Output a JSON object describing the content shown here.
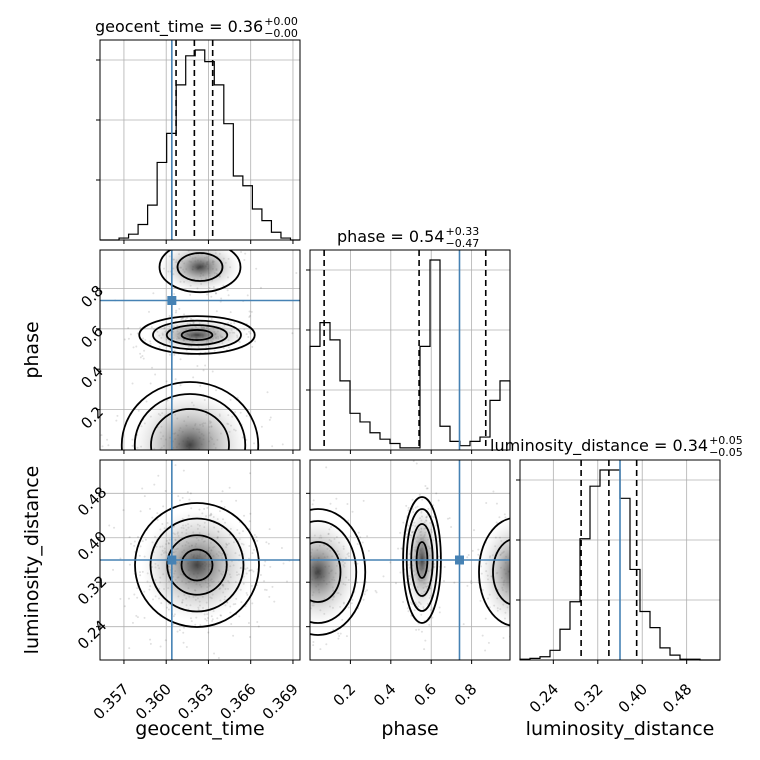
{
  "chart_data": {
    "type": "corner",
    "parameters": [
      "geocent_time",
      "phase",
      "luminosity_distance"
    ],
    "axis_labels": {
      "geocent_time": "geocent_time",
      "phase": "phase",
      "luminosity_distance": "luminosity_distance"
    },
    "ranges": {
      "geocent_time": [
        0.3553,
        0.3695
      ],
      "phase": [
        0.0,
        0.99
      ],
      "luminosity_distance": [
        0.18,
        0.54
      ]
    },
    "ticks": {
      "geocent_time": [
        "0.357",
        "0.360",
        "0.363",
        "0.366",
        "0.369"
      ],
      "phase": [
        "0.2",
        "0.4",
        "0.6",
        "0.8"
      ],
      "luminosity_distance": [
        "0.24",
        "0.32",
        "0.40",
        "0.48"
      ]
    },
    "truths": {
      "geocent_time": 0.3604,
      "phase": 0.74,
      "luminosity_distance": 0.36
    },
    "titles": [
      {
        "param": "geocent_time",
        "prefix": "geocent_time = 0.36",
        "plus": "+0.00",
        "minus": "−0.00"
      },
      {
        "param": "phase",
        "prefix": "phase = 0.54",
        "plus": "+0.33",
        "minus": "−0.47"
      },
      {
        "param": "luminosity_distance",
        "prefix": "luminosity_distance = 0.34",
        "plus": "+0.05",
        "minus": "−0.05"
      }
    ],
    "quantiles": {
      "geocent_time": [
        0.3607,
        0.362,
        0.3633
      ],
      "phase": [
        0.07,
        0.54,
        0.87
      ],
      "luminosity_distance": [
        0.29,
        0.34,
        0.39
      ]
    },
    "histograms": {
      "geocent_time": {
        "edges_range": [
          0.3553,
          0.3695
        ],
        "counts": [
          0,
          0,
          1,
          3,
          8,
          18,
          40,
          55,
          80,
          95,
          98,
          92,
          80,
          60,
          33,
          28,
          16,
          10,
          4,
          1,
          0
        ]
      },
      "phase": {
        "edges_range": [
          0.0,
          0.99
        ],
        "counts": [
          0.48,
          0.59,
          0.51,
          0.32,
          0.17,
          0.13,
          0.08,
          0.05,
          0.03,
          0.01,
          0.01,
          0.48,
          0.88,
          0.11,
          0.04,
          0.02,
          0.04,
          0.06,
          0.23,
          0.32
        ]
      },
      "luminosity_distance": {
        "edges_range": [
          0.18,
          0.54
        ],
        "counts": [
          1,
          2,
          4,
          12,
          38,
          72,
          150,
          215,
          235,
          235,
          200,
          112,
          60,
          40,
          15,
          6,
          1,
          1,
          0,
          0
        ]
      }
    },
    "grid": true
  }
}
